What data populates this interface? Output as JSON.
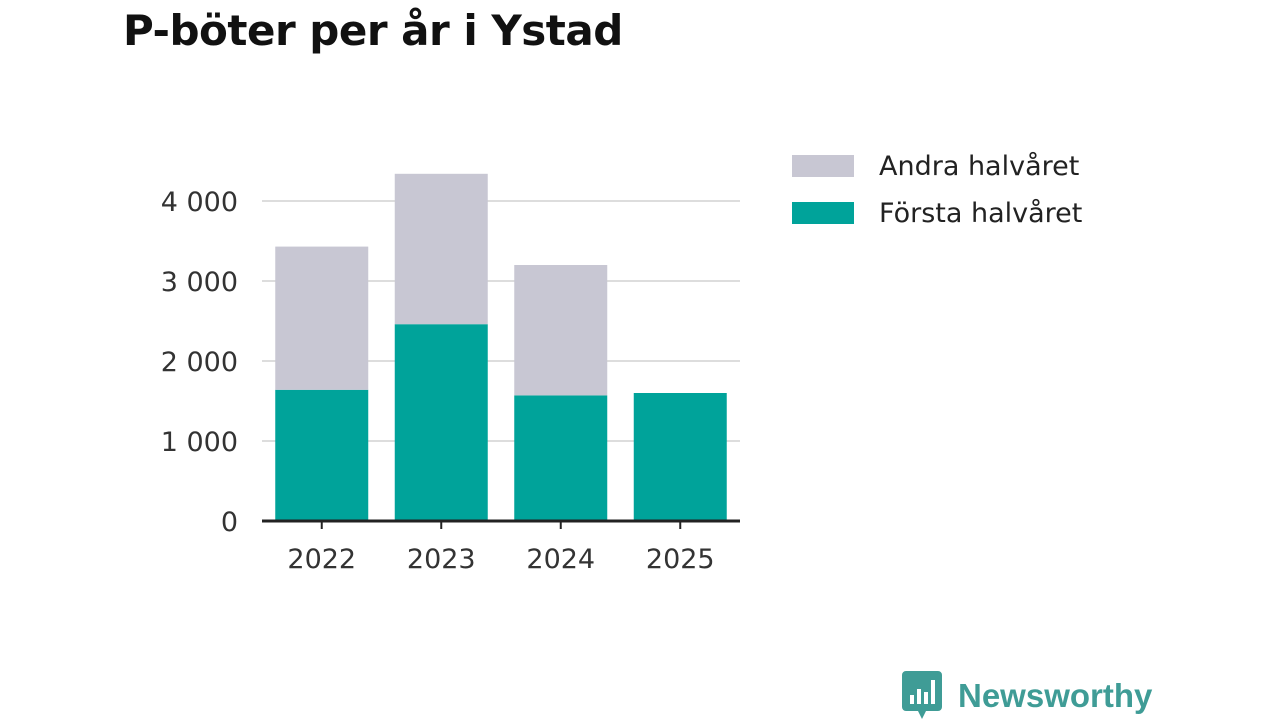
{
  "title": "P-böter per år i Ystad",
  "brand": {
    "name": "Newsworthy",
    "logo_icon": "newsworthy-logo-icon"
  },
  "colors": {
    "first_half": "#00a39a",
    "second_half": "#c8c7d3",
    "grid": "#dddddd",
    "axis": "#222222",
    "brand": "#3f9c96"
  },
  "chart_data": {
    "type": "bar",
    "stacked": true,
    "categories": [
      "2022",
      "2023",
      "2024",
      "2025"
    ],
    "series": [
      {
        "name": "Första halvåret",
        "color": "#00a39a",
        "values": [
          1640,
          2460,
          1570,
          1600
        ]
      },
      {
        "name": "Andra halvåret",
        "color": "#c8c7d3",
        "values": [
          1790,
          1880,
          1630,
          0
        ]
      }
    ],
    "title": "P-böter per år i Ystad",
    "xlabel": "",
    "ylabel": "",
    "ylim": [
      0,
      4500
    ],
    "yticks": [
      0,
      1000,
      2000,
      3000,
      4000
    ],
    "ytick_labels": [
      "0",
      "1 000",
      "2 000",
      "3 000",
      "4 000"
    ],
    "grid": true,
    "legend": {
      "position": "top-right",
      "order": [
        "Andra halvåret",
        "Första halvåret"
      ]
    }
  }
}
